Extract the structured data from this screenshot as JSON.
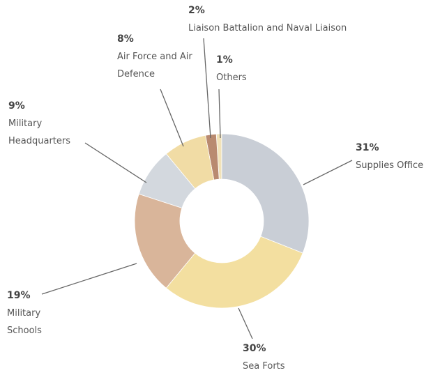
{
  "chart_data": {
    "type": "donut",
    "categories": [
      "Supplies Office",
      "Sea Forts",
      "Military Schools",
      "Military Headquarters",
      "Air Force and Air Defence",
      "Liaison Battalion and Naval Liaison",
      "Others"
    ],
    "values": [
      31,
      30,
      19,
      9,
      8,
      2,
      1
    ],
    "value_labels": [
      "31%",
      "30%",
      "19%",
      "9%",
      "8%",
      "2%",
      "1%"
    ],
    "colors": [
      "#c9ced6",
      "#f3dfa0",
      "#d9b59a",
      "#d3d8de",
      "#f1dca5",
      "#b98a70",
      "#f2e2b8"
    ]
  }
}
